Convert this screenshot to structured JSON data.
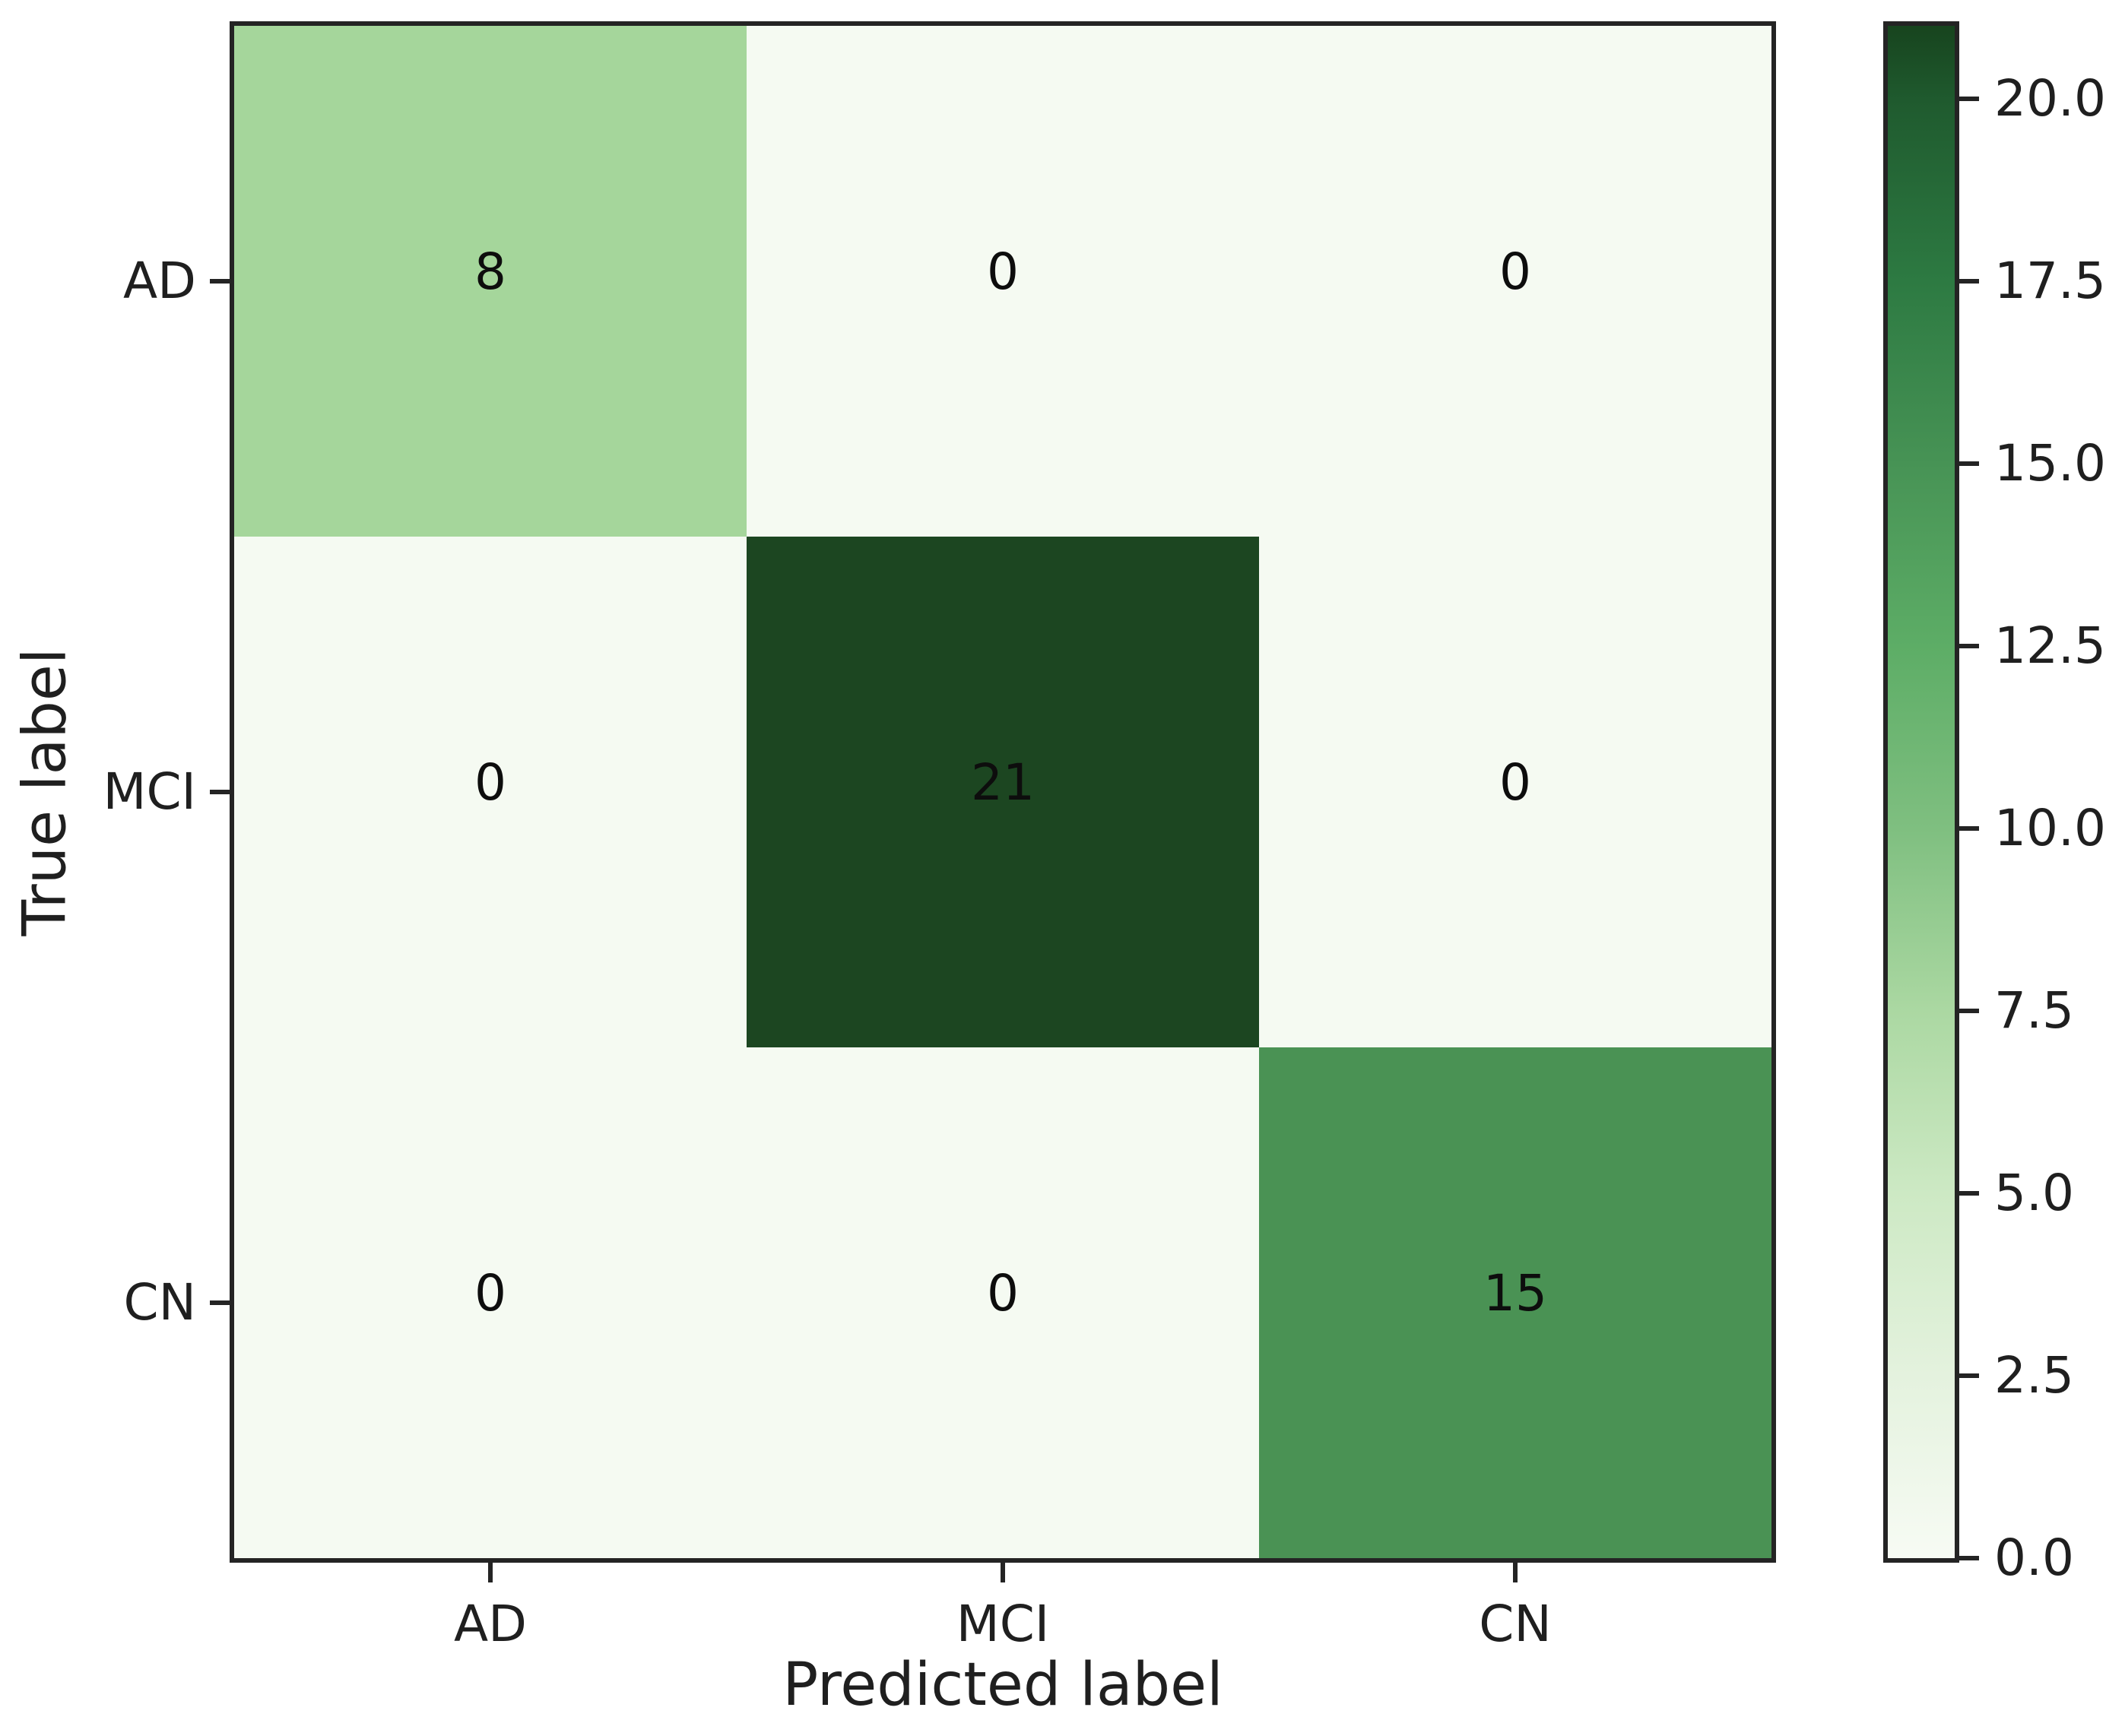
{
  "figure": {
    "background": "#ffffff",
    "axis_color": "#242424",
    "text_color": "#1f1f1f",
    "annotation_color": "#0d0d0d"
  },
  "chart_data": {
    "type": "heatmap",
    "title": "",
    "xlabel": "Predicted label",
    "ylabel": "True label",
    "x_tick_labels": [
      "AD",
      "MCI",
      "CN"
    ],
    "y_tick_labels": [
      "AD",
      "MCI",
      "CN"
    ],
    "matrix": [
      [
        8,
        0,
        0
      ],
      [
        0,
        21,
        0
      ],
      [
        0,
        0,
        15
      ]
    ],
    "vmin": 0,
    "vmax": 21,
    "colormap": "Greens",
    "cell_colors": [
      [
        "#a5d69b",
        "#f5faf2",
        "#f5faf2"
      ],
      [
        "#f5faf2",
        "#1c4621",
        "#f5faf2"
      ],
      [
        "#f5faf2",
        "#f5faf2",
        "#4a9254"
      ]
    ],
    "colorbar": {
      "position": "right",
      "ticks": [
        {
          "label": "0.0",
          "value": 0
        },
        {
          "label": "2.5",
          "value": 2.5
        },
        {
          "label": "5.0",
          "value": 5
        },
        {
          "label": "7.5",
          "value": 7.5
        },
        {
          "label": "10.0",
          "value": 10
        },
        {
          "label": "12.5",
          "value": 12.5
        },
        {
          "label": "15.0",
          "value": 15
        },
        {
          "label": "17.5",
          "value": 17.5
        },
        {
          "label": "20.0",
          "value": 20
        }
      ],
      "gradient_stops": [
        {
          "pos": 0,
          "color": "#f7fbf4"
        },
        {
          "pos": 11.9,
          "color": "#e4f2de"
        },
        {
          "pos": 23.8,
          "color": "#cde9c4"
        },
        {
          "pos": 35.7,
          "color": "#abd8a2"
        },
        {
          "pos": 47.6,
          "color": "#7fbf80"
        },
        {
          "pos": 59.5,
          "color": "#5dad66"
        },
        {
          "pos": 71.4,
          "color": "#479355"
        },
        {
          "pos": 83.3,
          "color": "#2d7a42"
        },
        {
          "pos": 95.2,
          "color": "#1f5a2e"
        },
        {
          "pos": 100,
          "color": "#17441e"
        }
      ]
    },
    "grid": false,
    "legend": false
  }
}
